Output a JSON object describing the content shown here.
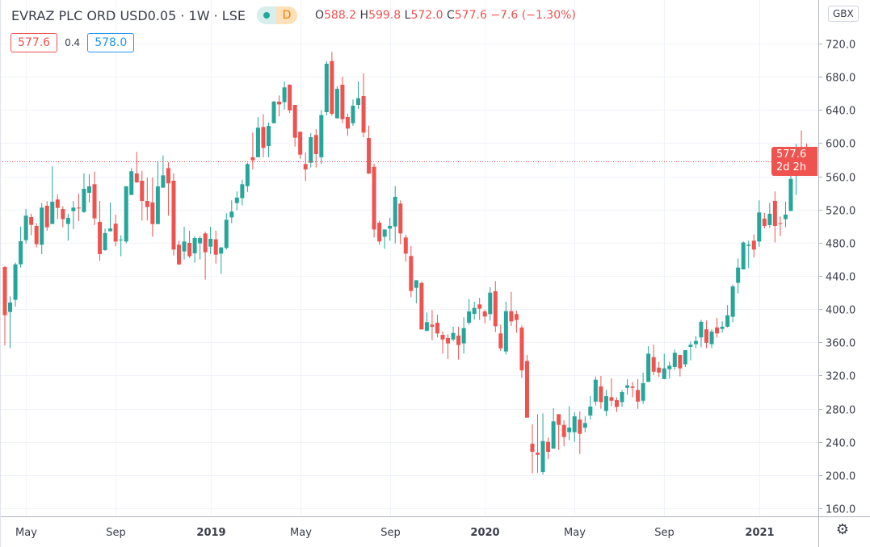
{
  "header": {
    "title": "EVRAZ PLC ORD USD0.05 · 1W · LSE",
    "market_status_icon": "green-dot-icon",
    "data_badge": "D",
    "ohlc": {
      "o_label": "O",
      "o": "588.2",
      "h_label": "H",
      "h": "599.8",
      "l_label": "L",
      "l": "572.0",
      "c_label": "C",
      "c": "577.6",
      "change": "−7.6 (−1.30%)"
    },
    "sell_price": "577.6",
    "spread": "0.4",
    "buy_price": "578.0",
    "currency": "GBX"
  },
  "last_price_label": {
    "price": "577.6",
    "countdown": "2d 2h"
  },
  "colors": {
    "up": "#26a69a",
    "down": "#ef5350",
    "grid": "#f0f3fa",
    "sell": "#ef5350",
    "buy": "#2196f3"
  },
  "settings_icon": "gear-icon",
  "chart_data": {
    "type": "candlestick",
    "interval": "1W",
    "ylim": [
      150,
      730
    ],
    "y_ticks": [
      "160.0",
      "200.0",
      "240.0",
      "280.0",
      "320.0",
      "360.0",
      "400.0",
      "440.0",
      "480.0",
      "520.0",
      "560.0",
      "600.0",
      "640.0",
      "680.0",
      "720.0"
    ],
    "x_ticks": [
      {
        "label": "May",
        "date": "2018-04-30",
        "bold": false
      },
      {
        "label": "Sep",
        "date": "2018-08-27",
        "bold": false
      },
      {
        "label": "2019",
        "date": "2018-12-31",
        "bold": true
      },
      {
        "label": "May",
        "date": "2019-04-29",
        "bold": false
      },
      {
        "label": "Sep",
        "date": "2019-08-26",
        "bold": false
      },
      {
        "label": "2020",
        "date": "2019-12-30",
        "bold": true
      },
      {
        "label": "May",
        "date": "2020-04-27",
        "bold": false
      },
      {
        "label": "Sep",
        "date": "2020-08-24",
        "bold": false
      },
      {
        "label": "2021",
        "date": "2020-12-28",
        "bold": true
      }
    ],
    "last_price": 577.6,
    "grid": true,
    "columns": [
      "date",
      "open",
      "high",
      "low",
      "close"
    ],
    "candles": [
      [
        "2018-04-02",
        450.7,
        451.7,
        356.1,
        392.7
      ],
      [
        "2018-04-09",
        396.6,
        415.4,
        352.9,
        408.0
      ],
      [
        "2018-04-16",
        411.2,
        456.0,
        403.0,
        454.0
      ],
      [
        "2018-04-23",
        454.0,
        499.3,
        450.1,
        481.8
      ],
      [
        "2018-04-30",
        483.1,
        520.7,
        479.2,
        512.6
      ],
      [
        "2018-05-07",
        511.0,
        514.9,
        489.0,
        501.6
      ],
      [
        "2018-05-14",
        500.3,
        503.5,
        474.4,
        478.3
      ],
      [
        "2018-05-21",
        477.6,
        527.8,
        466.3,
        522.3
      ],
      [
        "2018-05-28",
        524.6,
        530.1,
        494.5,
        498.7
      ],
      [
        "2018-06-04",
        502.6,
        572.2,
        502.6,
        529.5
      ],
      [
        "2018-06-11",
        532.1,
        538.2,
        508.4,
        522.0
      ],
      [
        "2018-06-18",
        520.7,
        524.0,
        498.7,
        508.4
      ],
      [
        "2018-06-25",
        502.6,
        514.9,
        482.5,
        510.0
      ],
      [
        "2018-07-02",
        518.1,
        530.4,
        496.4,
        522.3
      ],
      [
        "2018-07-09",
        522.3,
        539.2,
        506.1,
        521.7
      ],
      [
        "2018-07-16",
        517.1,
        563.5,
        515.9,
        545.0
      ],
      [
        "2018-07-23",
        540.2,
        562.8,
        528.5,
        548.0
      ],
      [
        "2018-07-30",
        550.5,
        565.7,
        501.3,
        509.4
      ],
      [
        "2018-08-06",
        505.2,
        530.4,
        458.2,
        466.3
      ],
      [
        "2018-08-13",
        471.1,
        497.1,
        470.2,
        491.6
      ],
      [
        "2018-08-20",
        493.8,
        528.5,
        493.8,
        497.1
      ],
      [
        "2018-08-27",
        502.9,
        513.9,
        476.0,
        481.5
      ],
      [
        "2018-09-03",
        483.1,
        489.0,
        463.7,
        483.8
      ],
      [
        "2018-09-10",
        481.5,
        548.0,
        479.2,
        548.0
      ],
      [
        "2018-09-17",
        537.6,
        570.0,
        537.6,
        566.1
      ],
      [
        "2018-09-24",
        563.5,
        589.4,
        552.1,
        552.8
      ],
      [
        "2018-10-01",
        554.7,
        566.7,
        506.8,
        530.4
      ],
      [
        "2018-10-08",
        530.4,
        558.6,
        506.8,
        523.0
      ],
      [
        "2018-10-15",
        528.5,
        558.6,
        487.3,
        502.5
      ],
      [
        "2018-10-22",
        502.5,
        578.7,
        502.5,
        547.9
      ],
      [
        "2018-10-29",
        546.3,
        585.2,
        546.3,
        561.2
      ],
      [
        "2018-11-05",
        569.9,
        577.0,
        512.6,
        551.5
      ],
      [
        "2018-11-12",
        554.7,
        563.5,
        464.6,
        471.8
      ],
      [
        "2018-11-19",
        477.6,
        482.5,
        453.3,
        453.9
      ],
      [
        "2018-11-26",
        469.5,
        499.3,
        459.8,
        481.5
      ],
      [
        "2018-12-03",
        479.9,
        494.4,
        461.4,
        463.7
      ],
      [
        "2018-12-10",
        467.2,
        488.0,
        455.9,
        485.7
      ],
      [
        "2018-12-17",
        479.2,
        488.0,
        459.8,
        485.7
      ],
      [
        "2018-12-24",
        491.2,
        493.2,
        435.5,
        468.5
      ],
      [
        "2018-12-31",
        475.3,
        499.3,
        466.3,
        484.7
      ],
      [
        "2019-01-07",
        484.1,
        494.4,
        454.9,
        465.6
      ],
      [
        "2019-01-14",
        466.9,
        474.4,
        442.6,
        474.4
      ],
      [
        "2019-01-21",
        473.7,
        515.5,
        471.8,
        507.7
      ],
      [
        "2019-01-28",
        510.6,
        531.1,
        503.5,
        517.5
      ],
      [
        "2019-02-04",
        527.8,
        541.8,
        519.1,
        534.3
      ],
      [
        "2019-02-11",
        533.7,
        556.0,
        525.2,
        550.5
      ],
      [
        "2019-02-18",
        548.2,
        576.4,
        541.4,
        574.8
      ],
      [
        "2019-02-25",
        583.0,
        612.7,
        568.3,
        579.3
      ],
      [
        "2019-03-04",
        583.0,
        631.5,
        583.0,
        618.6
      ],
      [
        "2019-03-11",
        619.5,
        634.8,
        583.0,
        594.3
      ],
      [
        "2019-03-18",
        596.5,
        625.0,
        583.0,
        620.8
      ],
      [
        "2019-03-25",
        624.0,
        651.0,
        624.0,
        650.0
      ],
      [
        "2019-04-01",
        650.0,
        657.4,
        632.2,
        646.7
      ],
      [
        "2019-04-08",
        649.3,
        674.3,
        640.6,
        667.2
      ],
      [
        "2019-04-15",
        670.4,
        671.0,
        636.4,
        639.6
      ],
      [
        "2019-04-22",
        646.1,
        646.1,
        595.9,
        606.6
      ],
      [
        "2019-04-29",
        613.7,
        613.7,
        581.3,
        586.2
      ],
      [
        "2019-05-06",
        574.8,
        588.8,
        554.4,
        568.3
      ],
      [
        "2019-05-13",
        576.4,
        612.1,
        570.6,
        607.2
      ],
      [
        "2019-05-20",
        609.8,
        616.9,
        570.6,
        586.8
      ],
      [
        "2019-05-27",
        583.0,
        639.6,
        574.8,
        633.8
      ],
      [
        "2019-06-03",
        637.4,
        698.9,
        633.1,
        695.7
      ],
      [
        "2019-06-10",
        698.9,
        709.9,
        633.1,
        635.4
      ],
      [
        "2019-06-17",
        629.9,
        668.8,
        629.9,
        665.5
      ],
      [
        "2019-06-24",
        670.4,
        680.1,
        624.0,
        628.9
      ],
      [
        "2019-07-01",
        631.5,
        635.4,
        608.8,
        617.6
      ],
      [
        "2019-07-08",
        624.0,
        652.6,
        620.8,
        645.1
      ],
      [
        "2019-07-15",
        646.1,
        674.3,
        641.2,
        654.2
      ],
      [
        "2019-07-22",
        656.8,
        684.0,
        607.2,
        612.7
      ],
      [
        "2019-07-29",
        606.2,
        621.2,
        562.8,
        563.4
      ],
      [
        "2019-08-05",
        571.5,
        575.4,
        486.3,
        496.0
      ],
      [
        "2019-08-12",
        504.1,
        506.7,
        477.6,
        481.5
      ],
      [
        "2019-08-19",
        487.3,
        496.0,
        472.7,
        496.0
      ],
      [
        "2019-08-26",
        497.0,
        510.0,
        482.4,
        500.3
      ],
      [
        "2019-09-02",
        499.6,
        548.2,
        479.2,
        535.3
      ],
      [
        "2019-09-09",
        527.2,
        531.0,
        478.2,
        491.2
      ],
      [
        "2019-09-16",
        486.3,
        489.6,
        457.2,
        466.9
      ],
      [
        "2019-09-23",
        464.0,
        476.0,
        414.4,
        421.9
      ],
      [
        "2019-09-30",
        425.7,
        434.8,
        407.0,
        434.8
      ],
      [
        "2019-10-07",
        431.6,
        432.9,
        375.5,
        375.5
      ],
      [
        "2019-10-14",
        373.9,
        395.9,
        373.2,
        384.3
      ],
      [
        "2019-10-21",
        381.3,
        398.8,
        362.6,
        378.7
      ],
      [
        "2019-10-28",
        383.6,
        393.3,
        365.8,
        370.7
      ],
      [
        "2019-11-04",
        369.0,
        373.2,
        346.4,
        363.5
      ],
      [
        "2019-11-11",
        365.2,
        369.7,
        339.9,
        358.7
      ],
      [
        "2019-11-18",
        363.5,
        378.8,
        361.0,
        371.3
      ],
      [
        "2019-11-25",
        368.1,
        378.8,
        339.2,
        356.7
      ],
      [
        "2019-12-02",
        358.7,
        390.1,
        346.4,
        377.1
      ],
      [
        "2019-12-09",
        383.6,
        412.1,
        381.0,
        397.2
      ],
      [
        "2019-12-16",
        394.3,
        408.9,
        387.5,
        401.4
      ],
      [
        "2019-12-23",
        405.7,
        413.8,
        386.9,
        400.5
      ],
      [
        "2019-12-30",
        397.2,
        399.2,
        383.0,
        391.1
      ],
      [
        "2020-01-06",
        394.0,
        426.4,
        386.2,
        419.9
      ],
      [
        "2020-01-13",
        421.5,
        433.8,
        372.3,
        379.4
      ],
      [
        "2020-01-20",
        370.7,
        381.3,
        349.6,
        352.8
      ],
      [
        "2020-01-27",
        349.0,
        408.9,
        345.4,
        397.6
      ],
      [
        "2020-02-03",
        397.6,
        420.9,
        379.7,
        385.2
      ],
      [
        "2020-02-10",
        394.0,
        398.2,
        371.6,
        386.9
      ],
      [
        "2020-02-17",
        377.7,
        380.3,
        317.2,
        326.2
      ],
      [
        "2020-02-24",
        337.6,
        344.7,
        269.2,
        269.2
      ],
      [
        "2020-03-02",
        237.8,
        261.1,
        202.1,
        228.0
      ],
      [
        "2020-03-09",
        227.1,
        273.4,
        202.8,
        224.5
      ],
      [
        "2020-03-16",
        203.8,
        274.4,
        200.5,
        241.0
      ],
      [
        "2020-03-23",
        240.1,
        245.2,
        219.3,
        228.0
      ],
      [
        "2020-03-30",
        231.9,
        280.6,
        231.9,
        264.7
      ],
      [
        "2020-04-06",
        273.4,
        273.4,
        230.3,
        260.5
      ],
      [
        "2020-04-13",
        260.5,
        266.0,
        234.5,
        245.9
      ],
      [
        "2020-04-20",
        251.7,
        283.1,
        242.0,
        257.2
      ],
      [
        "2020-04-27",
        251.7,
        275.7,
        240.1,
        270.8
      ],
      [
        "2020-05-04",
        266.9,
        276.7,
        225.5,
        249.8
      ],
      [
        "2020-05-11",
        257.2,
        270.8,
        251.4,
        262.7
      ],
      [
        "2020-05-18",
        271.8,
        295.1,
        266.9,
        282.5
      ],
      [
        "2020-05-25",
        288.6,
        318.8,
        283.8,
        314.9
      ],
      [
        "2020-06-01",
        306.8,
        319.4,
        279.9,
        288.0
      ],
      [
        "2020-06-08",
        277.3,
        302.6,
        271.2,
        295.1
      ],
      [
        "2020-06-15",
        293.8,
        316.5,
        283.1,
        289.6
      ],
      [
        "2020-06-22",
        290.3,
        293.8,
        276.0,
        282.2
      ],
      [
        "2020-06-29",
        288.0,
        302.6,
        282.2,
        300.0
      ],
      [
        "2020-07-06",
        305.2,
        315.5,
        297.1,
        308.1
      ],
      [
        "2020-07-13",
        306.8,
        312.3,
        293.8,
        305.2
      ],
      [
        "2020-07-20",
        302.6,
        315.5,
        279.9,
        288.6
      ],
      [
        "2020-07-27",
        289.6,
        323.6,
        285.7,
        310.7
      ],
      [
        "2020-08-03",
        312.3,
        355.4,
        312.3,
        346.3
      ],
      [
        "2020-08-10",
        342.1,
        357.0,
        320.4,
        324.6
      ],
      [
        "2020-08-17",
        329.5,
        336.6,
        318.1,
        323.6
      ],
      [
        "2020-08-24",
        315.7,
        346.4,
        315.7,
        328.6
      ],
      [
        "2020-08-31",
        327.6,
        336.7,
        316.3,
        331.9
      ],
      [
        "2020-09-07",
        330.2,
        351.3,
        327.0,
        347.4
      ],
      [
        "2020-09-14",
        344.8,
        344.8,
        318.9,
        328.6
      ],
      [
        "2020-09-21",
        333.5,
        350.6,
        330.2,
        350.6
      ],
      [
        "2020-09-28",
        354.5,
        361.0,
        338.3,
        357.1
      ],
      [
        "2020-10-05",
        357.8,
        367.5,
        352.9,
        361.7
      ],
      [
        "2020-10-12",
        365.9,
        387.0,
        353.9,
        384.7
      ],
      [
        "2020-10-19",
        375.6,
        386.3,
        352.9,
        359.4
      ],
      [
        "2020-10-26",
        357.8,
        375.6,
        352.9,
        373.0
      ],
      [
        "2020-11-02",
        377.9,
        389.5,
        365.9,
        370.7
      ],
      [
        "2020-11-09",
        376.2,
        385.3,
        371.7,
        378.8
      ],
      [
        "2020-11-16",
        378.8,
        404.8,
        377.9,
        392.5
      ],
      [
        "2020-11-23",
        390.8,
        429.7,
        384.3,
        427.4
      ],
      [
        "2020-11-30",
        431.7,
        460.8,
        418.7,
        450.1
      ],
      [
        "2020-12-07",
        447.9,
        481.5,
        447.9,
        480.3
      ],
      [
        "2020-12-14",
        476.2,
        482.5,
        449.2,
        477.7
      ],
      [
        "2020-12-21",
        482.5,
        490.0,
        462.1,
        471.8
      ],
      [
        "2020-12-28",
        481.5,
        531.1,
        475.1,
        516.5
      ],
      [
        "2021-01-04",
        509.1,
        515.9,
        497.1,
        500.3
      ],
      [
        "2021-01-11",
        501.3,
        527.9,
        497.8,
        514.9
      ],
      [
        "2021-01-18",
        530.5,
        541.8,
        480.3,
        500.3
      ],
      [
        "2021-01-25",
        503.6,
        511.7,
        488.0,
        502.6
      ],
      [
        "2021-02-01",
        508.4,
        529.5,
        498.7,
        513.9
      ],
      [
        "2021-02-08",
        518.2,
        561.3,
        518.2,
        557.0
      ],
      [
        "2021-02-15",
        565.8,
        599.2,
        537.6,
        571.6
      ],
      [
        "2021-02-22",
        587.1,
        615.3,
        575.0,
        585.2
      ],
      [
        "2021-03-01",
        588.2,
        599.8,
        572.0,
        577.6
      ]
    ]
  }
}
